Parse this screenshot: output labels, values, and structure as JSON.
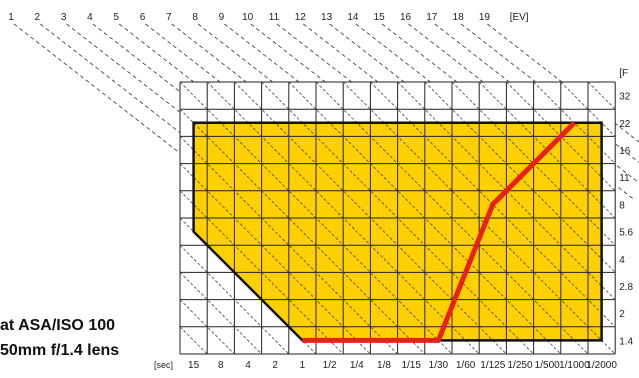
{
  "chart_data": {
    "type": "line",
    "title": "",
    "caption_line1": "at ASA/ISO 100",
    "caption_line2": "50mm f/1.4 lens",
    "x_unit_label": "[sec]",
    "y_unit_label": "[F",
    "ev_unit_label": "[EV]",
    "x_ticks": [
      "15",
      "8",
      "4",
      "2",
      "1",
      "1/2",
      "1/4",
      "1/8",
      "1/15",
      "1/30",
      "1/60",
      "1/125",
      "1/250",
      "1/500",
      "1/1000",
      "1/2000"
    ],
    "y_ticks": [
      "1.4",
      "2",
      "2.8",
      "4",
      "5.6",
      "8",
      "11",
      "16",
      "22",
      "32"
    ],
    "ev_labels": [
      "1",
      "2",
      "3",
      "4",
      "5",
      "6",
      "7",
      "8",
      "9",
      "10",
      "11",
      "12",
      "13",
      "14",
      "15",
      "16",
      "17",
      "18",
      "19"
    ],
    "control_range_polygon": [
      {
        "shutter": "15",
        "aperture": "22"
      },
      {
        "shutter": "1/2000",
        "aperture": "22"
      },
      {
        "shutter": "1/2000",
        "aperture": "1.4"
      },
      {
        "shutter": "1",
        "aperture": "1.4"
      },
      {
        "shutter": "15",
        "aperture": "5.6"
      }
    ],
    "program_line": [
      {
        "shutter": "1",
        "aperture": "1.4"
      },
      {
        "shutter": "1/30",
        "aperture": "1.4"
      },
      {
        "shutter": "1/125",
        "aperture": "8"
      },
      {
        "shutter": "1/1000",
        "aperture": "22"
      }
    ],
    "colors": {
      "fill": "#ffd000",
      "line": "#e8211b",
      "grid": "#222222"
    },
    "grid": true
  }
}
